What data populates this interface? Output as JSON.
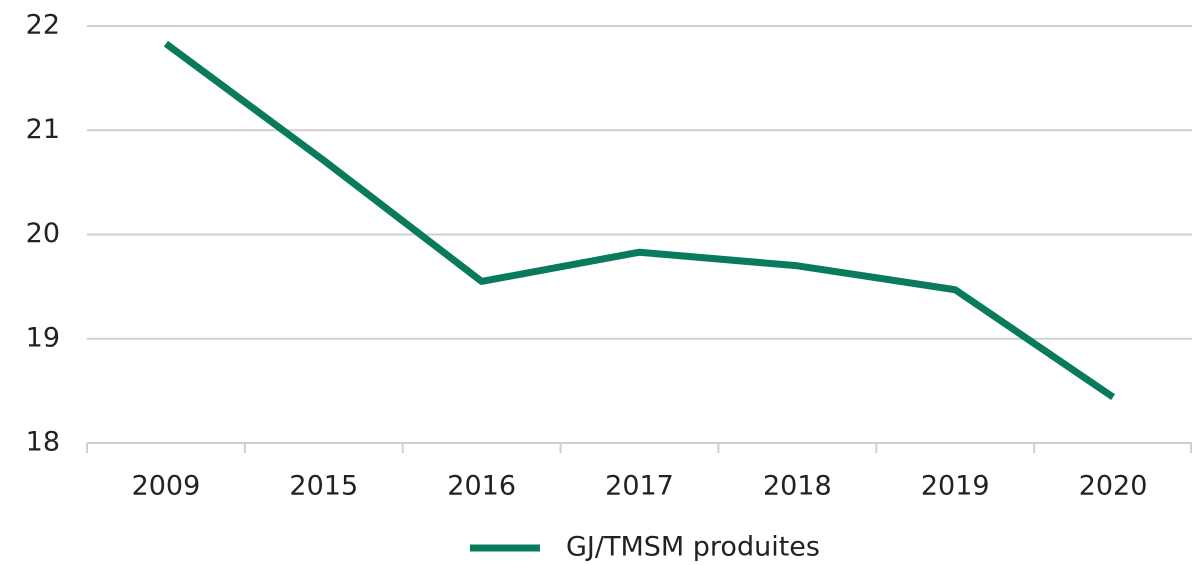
{
  "chart_data": {
    "type": "line",
    "categories": [
      "2009",
      "2015",
      "2016",
      "2017",
      "2018",
      "2019",
      "2020"
    ],
    "series": [
      {
        "name": "GJ/TMSM produites",
        "color": "#0a7a5c",
        "values": [
          21.83,
          20.71,
          19.55,
          19.83,
          19.7,
          19.47,
          18.44
        ]
      }
    ],
    "ylim": [
      18,
      22
    ],
    "yticks": [
      18,
      19,
      20,
      21,
      22
    ],
    "grid": true,
    "legend": "bottom"
  }
}
